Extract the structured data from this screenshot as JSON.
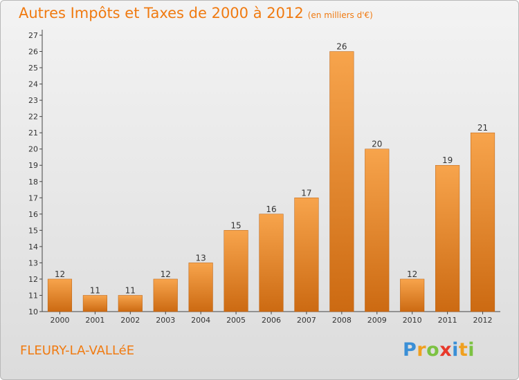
{
  "title": "Autres Impôts et Taxes de 2000 à 2012",
  "unit_note": "(en milliers d'€)",
  "commune": "FLEURY-LA-VALLéE",
  "brand": {
    "letters": [
      {
        "ch": "P",
        "color": "#3a8fd6"
      },
      {
        "ch": "r",
        "color": "#f0a020"
      },
      {
        "ch": "o",
        "color": "#7cc242"
      },
      {
        "ch": "x",
        "color": "#e8382a"
      },
      {
        "ch": "i",
        "color": "#3a8fd6"
      },
      {
        "ch": "t",
        "color": "#f0a020"
      },
      {
        "ch": "i",
        "color": "#7cc242"
      }
    ]
  },
  "colors": {
    "bar_light": "#f7a44c",
    "bar_dark": "#cc6a12",
    "title": "#f07a10"
  },
  "chart_data": {
    "type": "bar",
    "categories": [
      "2000",
      "2001",
      "2002",
      "2003",
      "2004",
      "2005",
      "2006",
      "2007",
      "2008",
      "2009",
      "2010",
      "2011",
      "2012"
    ],
    "values": [
      12,
      11,
      11,
      12,
      13,
      15,
      16,
      17,
      26,
      20,
      12,
      19,
      21
    ],
    "ylim": [
      10,
      27
    ],
    "yticks": [
      10,
      11,
      12,
      13,
      14,
      15,
      16,
      17,
      18,
      19,
      20,
      21,
      22,
      23,
      24,
      25,
      26,
      27
    ],
    "grid": false
  }
}
